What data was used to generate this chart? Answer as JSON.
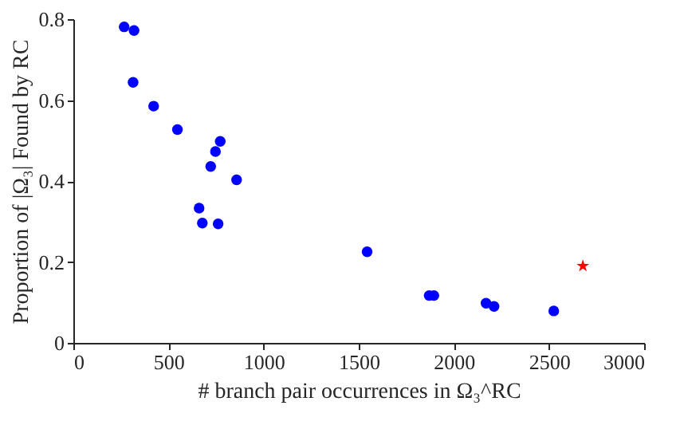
{
  "chart_data": {
    "type": "scatter",
    "xlabel": "# branch pair occurrences in Ω₃^RC",
    "ylabel": "Proportion of |Ω₃| Found by RC",
    "series": [
      {
        "color": "#0000ff",
        "marker": "circle",
        "x": [
          267,
          319,
          314,
          422,
          547,
          772,
          747,
          722,
          858,
          661,
          678,
          761,
          1544,
          1870,
          1895,
          2169,
          2211,
          2525
        ],
        "values": [
          0.781,
          0.772,
          0.644,
          0.585,
          0.527,
          0.498,
          0.473,
          0.436,
          0.403,
          0.333,
          0.296,
          0.294,
          0.225,
          0.117,
          0.117,
          0.098,
          0.09,
          0.079
        ]
      },
      {
        "color": "#ff0000",
        "marker": "star",
        "x": [
          2678
        ],
        "values": [
          0.19
        ]
      }
    ],
    "xlim": [
      0,
      3000
    ],
    "xticks": [
      0,
      500,
      1000,
      1500,
      2000,
      2500,
      3000
    ],
    "ylim": [
      0,
      0.8
    ],
    "yticks": [
      0,
      0.2,
      0.4,
      0.6,
      0.8
    ],
    "grid": false
  }
}
